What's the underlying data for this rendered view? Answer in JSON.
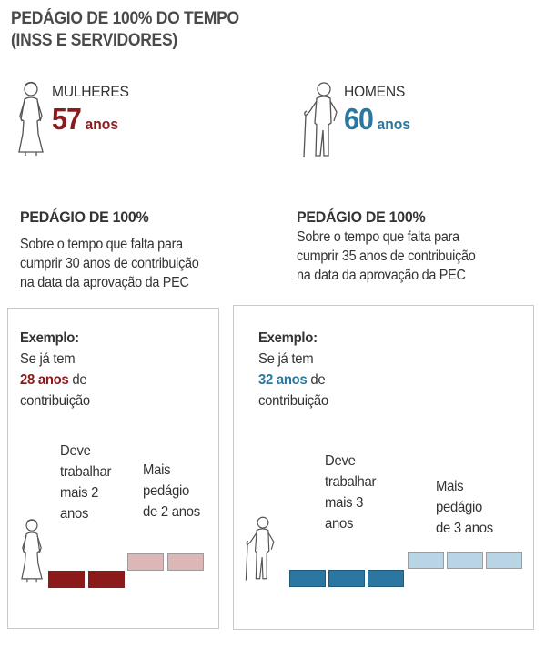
{
  "title_lines": [
    "PEDÁGIO DE 100% DO TEMPO",
    "(INSS E SERVIDORES)"
  ],
  "colors": {
    "women_accent": "#8a1a1b",
    "men_accent": "#2a78a0",
    "women_toll": "#ddb6b6",
    "men_toll": "#b9d5e5"
  },
  "women": {
    "label": "MULHERES",
    "age": "57",
    "age_unit": "anos",
    "icon": "elderly-woman-icon",
    "section_title": "PEDÁGIO DE 100%",
    "section_desc": [
      "Sobre o tempo que falta para",
      "cumprir 30 anos de contribuição",
      "na data da aprovação da PEC"
    ],
    "example": {
      "head": "Exemplo:",
      "line1": "Se já tem",
      "years": "28 anos",
      "years_suffix": " de",
      "line3": "contribuição"
    },
    "work_label": [
      "Deve",
      "trabalhar",
      "mais 2",
      "anos"
    ],
    "toll_label": [
      "Mais",
      "pedágio",
      "de 2 anos"
    ],
    "work_years": 2,
    "toll_years": 2
  },
  "men": {
    "label": "HOMENS",
    "age": "60",
    "age_unit": "anos",
    "icon": "elderly-man-with-cane-icon",
    "section_title": "PEDÁGIO DE 100%",
    "section_desc": [
      "Sobre o tempo que falta para",
      "cumprir 35 anos de contribuição",
      "na data da aprovação da PEC"
    ],
    "example": {
      "head": "Exemplo:",
      "line1": "Se já tem",
      "years": "32 anos",
      "years_suffix": " de",
      "line3": "contribuição"
    },
    "work_label": [
      "Deve",
      "trabalhar",
      "mais 3",
      "anos"
    ],
    "toll_label": [
      "Mais",
      "pedágio",
      "de 3 anos"
    ],
    "work_years": 3,
    "toll_years": 3
  }
}
